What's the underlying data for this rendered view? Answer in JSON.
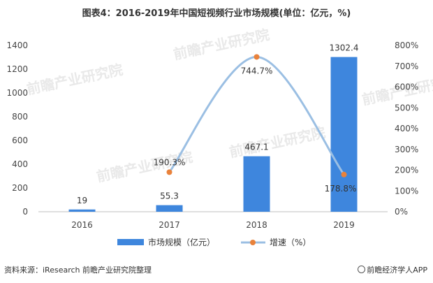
{
  "title": "图表4：2016-2019年中国短视频行业市场规模(单位：亿元，%)",
  "source": "资料来源：iResearch  前瞻产业研究院整理",
  "brand": "前瞻经济学人APP",
  "watermark": "前瞻产业研究院",
  "colors": {
    "bar": "#3e86dd",
    "line": "#9bbfe3",
    "marker": "#e9823b",
    "axis": "#bfbfbf"
  },
  "chart_data": {
    "type": "bar+line",
    "categories": [
      "2016",
      "2017",
      "2018",
      "2019"
    ],
    "series": [
      {
        "name": "市场规模（亿元）",
        "type": "bar",
        "axis": "left",
        "values": [
          19,
          55.3,
          467.1,
          1302.4
        ],
        "labels": [
          "19",
          "55.3",
          "467.1",
          "1302.4"
        ]
      },
      {
        "name": "增速（%）",
        "type": "line",
        "axis": "right",
        "values": [
          null,
          190.3,
          744.7,
          178.8
        ],
        "labels": [
          "",
          "190.3%",
          "744.7%",
          "178.8%"
        ]
      }
    ],
    "y_left": {
      "min": 0,
      "max": 1400,
      "ticks": [
        0,
        200,
        400,
        600,
        800,
        1000,
        1200,
        1400
      ]
    },
    "y_right": {
      "min": 0,
      "max": 800,
      "ticks": [
        "0%",
        "100%",
        "200%",
        "300%",
        "400%",
        "500%",
        "600%",
        "700%",
        "800%"
      ]
    },
    "legend_position": "bottom"
  }
}
